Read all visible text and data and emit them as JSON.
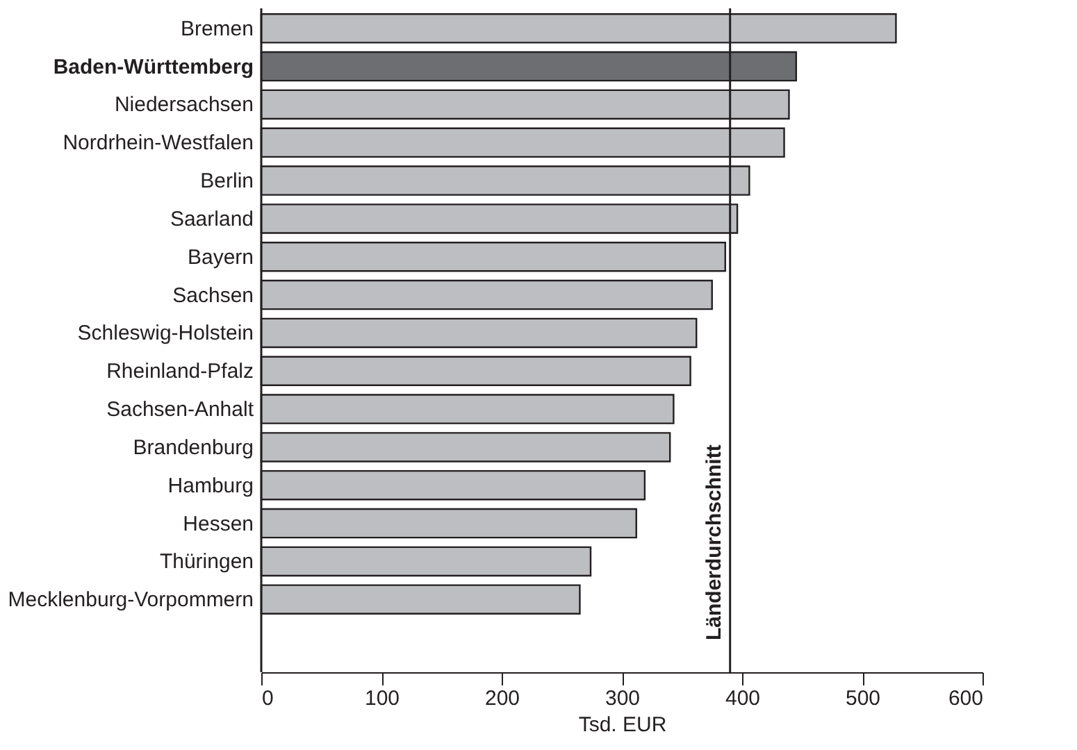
{
  "chart_data": {
    "type": "bar",
    "orientation": "horizontal",
    "xlabel": "Tsd. EUR",
    "categories": [
      "Bremen",
      "Baden-Württemberg",
      "Niedersachsen",
      "Nordrhein-Westfalen",
      "Berlin",
      "Saarland",
      "Bayern",
      "Sachsen",
      "Schleswig-Holstein",
      "Rheinland-Pfalz",
      "Sachsen-Anhalt",
      "Brandenburg",
      "Hamburg",
      "Hessen",
      "Thüringen",
      "Mecklenburg-Vorpommern"
    ],
    "values": [
      528,
      445,
      439,
      435,
      406,
      396,
      386,
      375,
      362,
      357,
      343,
      340,
      319,
      312,
      274,
      265
    ],
    "colors": [
      "#bdbec2",
      "#6d6e72",
      "#bdbec2",
      "#bdbec2",
      "#bdbec2",
      "#bdbec2",
      "#bdbec2",
      "#bdbec2",
      "#bdbec2",
      "#bdbec2",
      "#bdbec2",
      "#bdbec2",
      "#bdbec2",
      "#bdbec2",
      "#bdbec2",
      "#bdbec2"
    ],
    "xlim": [
      0,
      600
    ],
    "xticks": [
      0,
      100,
      200,
      300,
      400,
      500,
      600
    ],
    "ref_lines": [
      {
        "axis": "x",
        "value": 390,
        "label": "Länderdurchschnitt",
        "color": "#231f20"
      }
    ],
    "grid": false
  }
}
